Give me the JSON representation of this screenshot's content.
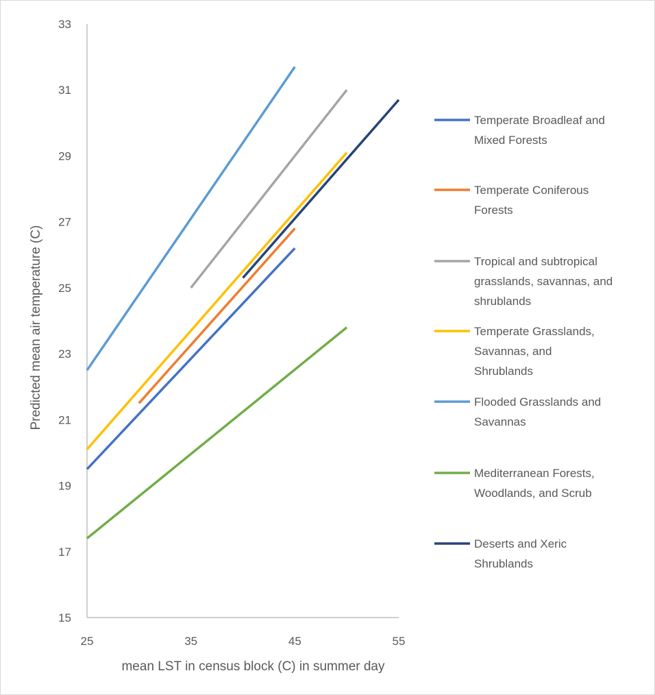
{
  "chart_data": {
    "type": "line",
    "title": "",
    "xlabel": "mean LST in census block (C) in summer day",
    "ylabel": "Predicted mean air temperature (C)",
    "xlim": [
      25,
      55
    ],
    "ylim": [
      15,
      33
    ],
    "x_ticks": [
      "25",
      "35",
      "45",
      "55"
    ],
    "y_ticks": [
      "15",
      "17",
      "19",
      "21",
      "23",
      "25",
      "27",
      "29",
      "31",
      "33"
    ],
    "grid": false,
    "legend_position": "right",
    "series": [
      {
        "name": "Temperate Broadleaf and Mixed Forests",
        "color": "#4472c4",
        "points": [
          [
            25,
            19.5
          ],
          [
            45,
            26.2
          ]
        ]
      },
      {
        "name": "Temperate Coniferous Forests",
        "color": "#ed7d31",
        "points": [
          [
            30,
            21.5
          ],
          [
            45,
            26.8
          ]
        ]
      },
      {
        "name": "Tropical and subtropical grasslands, savannas, and shrublands",
        "color": "#a5a5a5",
        "points": [
          [
            35,
            25.0
          ],
          [
            50,
            31.0
          ]
        ]
      },
      {
        "name": "Temperate Grasslands, Savannas, and Shrublands",
        "color": "#ffc000",
        "points": [
          [
            25,
            20.1
          ],
          [
            50,
            29.1
          ]
        ]
      },
      {
        "name": "Flooded Grasslands and Savannas",
        "color": "#5b9bd5",
        "points": [
          [
            25,
            22.5
          ],
          [
            45,
            31.7
          ]
        ]
      },
      {
        "name": "Mediterranean Forests, Woodlands, and Scrub",
        "color": "#70ad47",
        "points": [
          [
            25,
            17.4
          ],
          [
            50,
            23.8
          ]
        ]
      },
      {
        "name": "Deserts and Xeric Shrublands",
        "color": "#264478",
        "points": [
          [
            40,
            25.3
          ],
          [
            55,
            30.7
          ]
        ]
      }
    ],
    "legend_lines": [
      [
        "Temperate Broadleaf and",
        "Mixed Forests"
      ],
      [
        "Temperate Coniferous",
        "Forests"
      ],
      [
        "Tropical and subtropical",
        "grasslands, savannas, and",
        "shrublands"
      ],
      [
        "Temperate Grasslands,",
        "Savannas, and",
        "Shrublands"
      ],
      [
        "Flooded Grasslands and",
        "Savannas"
      ],
      [
        "Mediterranean Forests,",
        "Woodlands, and Scrub"
      ],
      [
        "Deserts and Xeric",
        "Shrublands"
      ]
    ]
  }
}
